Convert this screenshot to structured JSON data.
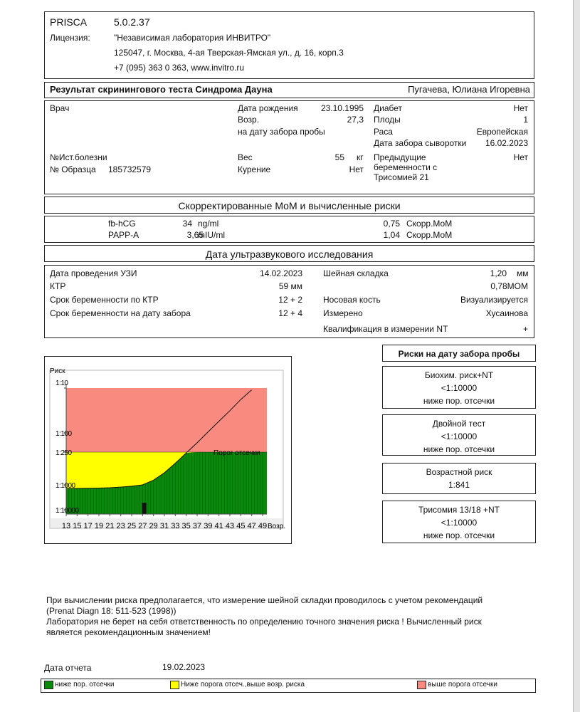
{
  "header": {
    "product": "PRISCA",
    "version": "5.0.2.37",
    "license_label": "Лицензия:",
    "license": "\"Независимая лаборатория ИНВИТРО\"",
    "address": "125047, г. Москва, 4-ая Тверская-Ямская ул., д. 16, корп.3",
    "phone": "+7 (095) 363 0 363, www.invitro.ru"
  },
  "result": {
    "title": "Результат скринингового теста Синдрома Дауна",
    "patient": "Пугачева, Юлиана Игоревна"
  },
  "patient_info": {
    "doctor_label": "Врач",
    "history_label": "№Ист.болезни",
    "sample_label": "№ Образца",
    "sample": "185732579",
    "birth_label": "Дата рождения",
    "birth": "23.10.1995",
    "age_label": "Возр.",
    "age": "27,3",
    "age_note": "на дату забора пробы",
    "weight_label": "Вес",
    "weight": "55",
    "weight_unit": "кг",
    "smoking_label": "Курение",
    "smoking": "Нет",
    "diabetes_label": "Диабет",
    "diabetes": "Нет",
    "fetuses_label": "Плоды",
    "fetuses": "1",
    "race_label": "Раса",
    "race": "Европейская",
    "serum_date_label": "Дата забора сыворотки",
    "serum_date": "16.02.2023",
    "previous_label": "Предыдущие беременности с Трисомией 21",
    "previous": "Нет"
  },
  "mom": {
    "title": "Скорректированные МоМ и вычисленные риски",
    "rows": [
      {
        "marker": "fb-hCG",
        "value": "34",
        "unit": "ng/ml",
        "mom": "0,75",
        "mom_label": "Скорр.МоМ"
      },
      {
        "marker": "PAPP-A",
        "value": "3,65",
        "unit": "mIU/ml",
        "mom": "1,04",
        "mom_label": "Скорр.МоМ"
      }
    ]
  },
  "ultrasound": {
    "title": "Дата ультразвукового исследования",
    "rows": [
      {
        "label": "Дата проведения УЗИ",
        "value": "14.02.2023"
      },
      {
        "label": "КТР",
        "value": "59 мм"
      },
      {
        "label": "Срок беременности по КТР",
        "value": "12 + 2"
      },
      {
        "label": "Срок беременности на дату забора",
        "value": "12 + 4"
      }
    ],
    "nt_label": "Шейная складка",
    "nt": "1,20",
    "nt_unit": "мм",
    "nt_mom": "0,78MOM",
    "nasal_label": "Носовая кость",
    "nasal": "Визуализируется",
    "measured_label": "Измерено",
    "measured": "Хусаинова",
    "qualification_label": "Квалификация в измерении NT",
    "qualification": "+"
  },
  "risk_chart": {
    "y_label": "Риск",
    "x_label": "Возр.",
    "threshold_label": "Порог отсечки",
    "threshold": 250,
    "ylim": [
      10,
      10000
    ],
    "yticks": [
      {
        "value": 10,
        "label": "1:10"
      },
      {
        "value": 100,
        "label": "1:100"
      },
      {
        "value": 250,
        "label": "1:250"
      },
      {
        "value": 1000,
        "label": "1:1000"
      },
      {
        "value": 10000,
        "label": "1:10000"
      }
    ],
    "xlim": [
      13,
      49
    ],
    "xticks": [
      13,
      15,
      17,
      19,
      21,
      23,
      25,
      27,
      29,
      31,
      33,
      35,
      37,
      39,
      41,
      43,
      45,
      47,
      49
    ],
    "age_risk": {
      "x": [
        13,
        15,
        17,
        19,
        21,
        23,
        25,
        27,
        29,
        31,
        33,
        35,
        37,
        39,
        41,
        43,
        45,
        47
      ],
      "values": [
        1400,
        1390,
        1370,
        1340,
        1300,
        1230,
        1130,
        1000,
        820,
        600,
        400,
        260,
        160,
        95,
        55,
        32,
        18,
        11
      ]
    },
    "patient_age": 27.3
  },
  "risks": {
    "title": "Риски на дату забора пробы",
    "boxes": [
      {
        "title": "Биохим. риск+NT",
        "value": "<1:10000",
        "note": "ниже пор. отсечки"
      },
      {
        "title": "Двойной тест",
        "value": "<1:10000",
        "note": "ниже пор. отсечки"
      },
      {
        "title": "Возрастной риск",
        "value": "1:841"
      },
      {
        "title": "Трисомия 13/18 +NT",
        "value": "<1:10000",
        "note": "ниже пор. отсечки"
      }
    ]
  },
  "notes": [
    "При вычислении риска предполагается, что измерение шейной складки проводилось с учетом рекомендаций",
    "(Prenat Diagn 18: 511-523 (1998))",
    "Лаборатория не берет на себя ответственность по определению точного значения риска ! Вычисленный риск",
    "является рекомендационным значением!"
  ],
  "report_date_label": "Дата отчета",
  "report_date": "19.02.2023",
  "legend": [
    {
      "label": "ниже пор. отсечки",
      "color": "#0a8a0a"
    },
    {
      "label": "Ниже порога отсеч.,выше возр. риска",
      "color": "#ffff00"
    },
    {
      "label": "выше порога отсечки",
      "color": "#f88a80"
    }
  ]
}
